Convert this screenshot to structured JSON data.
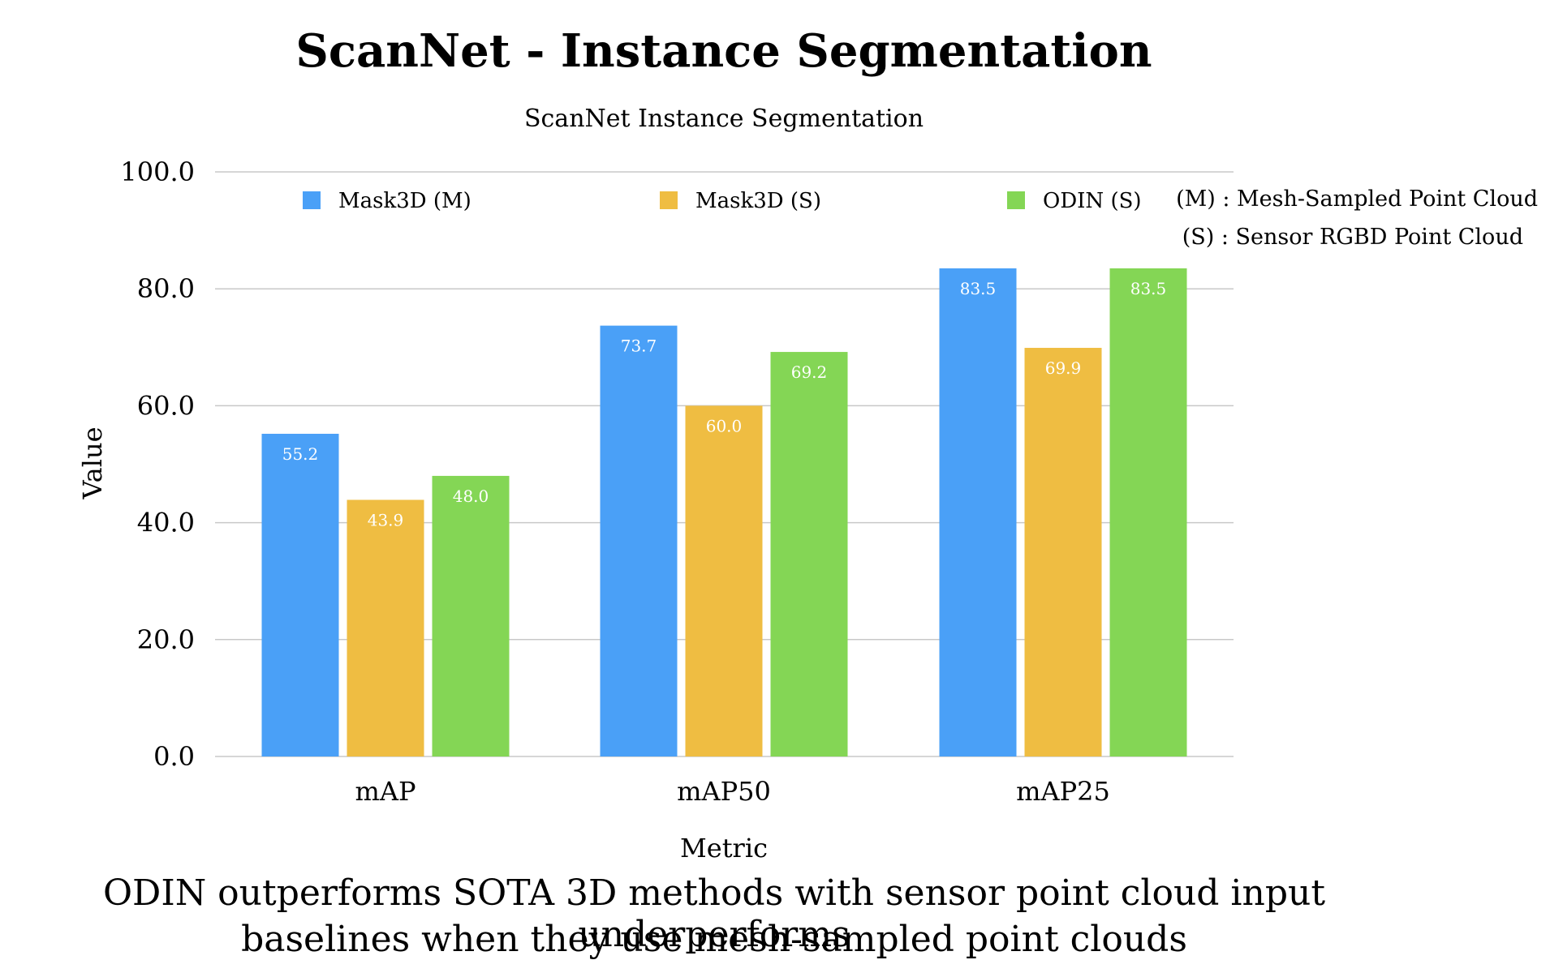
{
  "chart_data": {
    "type": "bar",
    "title": "ScanNet - Instance Segmentation",
    "subtitle": "ScanNet Instance Segmentation",
    "xlabel": "Metric",
    "ylabel": "Value",
    "categories": [
      "mAP",
      "mAP50",
      "mAP25"
    ],
    "series": [
      {
        "name": "Mask3D (M)",
        "color": "#4aa0f7",
        "values": [
          55.2,
          73.7,
          83.5
        ],
        "labels": [
          "55.2",
          "73.7",
          "83.5"
        ]
      },
      {
        "name": "Mask3D (S)",
        "color": "#efbd42",
        "values": [
          43.9,
          60.0,
          69.9
        ],
        "labels": [
          "43.9",
          "60.0",
          "69.9"
        ]
      },
      {
        "name": "ODIN (S)",
        "color": "#84d655",
        "values": [
          48.0,
          69.2,
          83.5
        ],
        "labels": [
          "48.0",
          "69.2",
          "83.5"
        ]
      }
    ],
    "ylim": [
      0,
      100
    ],
    "yticks": [
      "0.0",
      "20.0",
      "40.0",
      "60.0",
      "80.0",
      "100.0"
    ],
    "grid": true,
    "legend_position": "top",
    "annotations": [
      "(M) : Mesh-Sampled Point Cloud",
      "(S) : Sensor RGBD Point Cloud"
    ]
  },
  "caption": {
    "line1": "ODIN outperforms SOTA 3D methods with sensor point cloud input underperforms",
    "line2": "baselines when they use mesh-sampled point clouds"
  }
}
